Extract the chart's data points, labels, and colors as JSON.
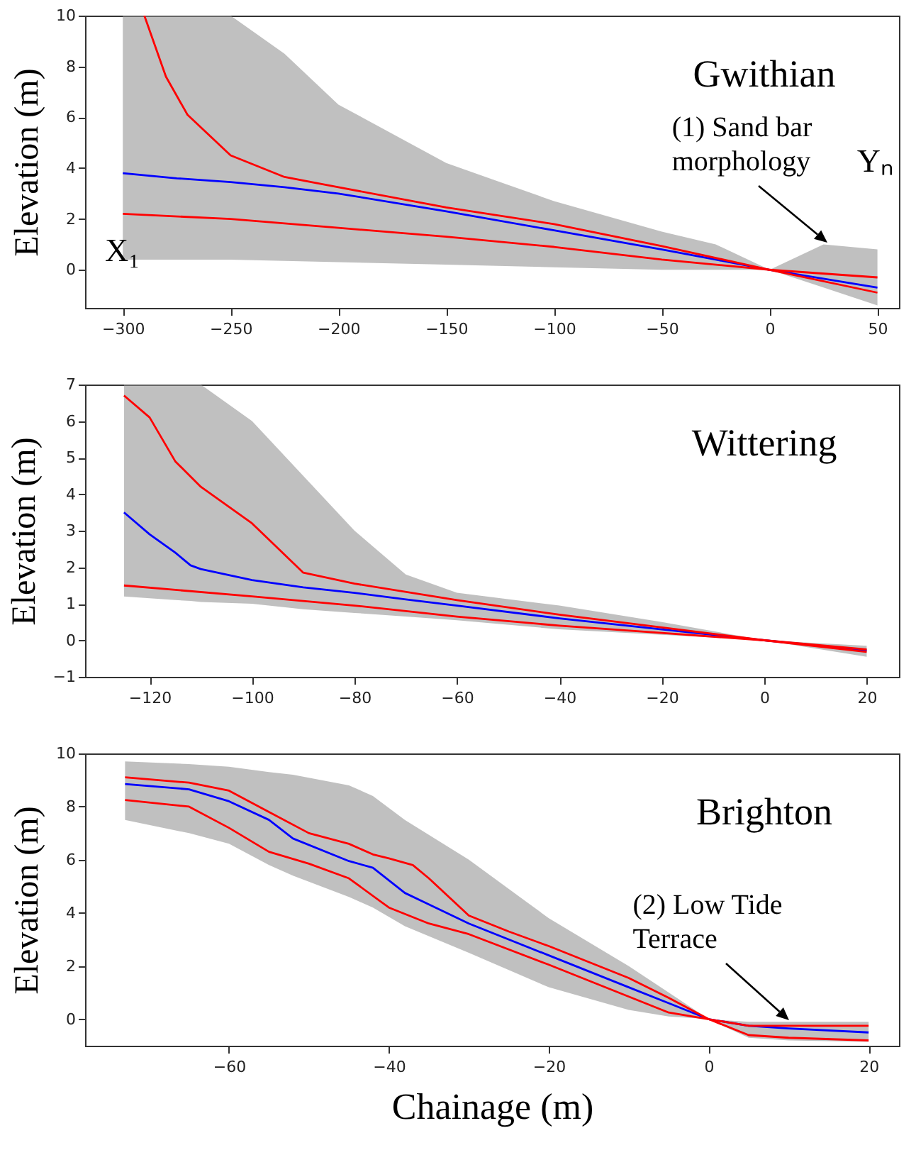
{
  "chart_data": [
    {
      "type": "line",
      "title": "Gwithian",
      "ylabel": "Elevation (m)",
      "xlim": [
        -317.5,
        60
      ],
      "ylim": [
        -1.5,
        10
      ],
      "xticks": [
        -300,
        -250,
        -200,
        -150,
        -100,
        -50,
        0,
        50
      ],
      "yticks": [
        0,
        2,
        4,
        6,
        8,
        10
      ],
      "grid": false,
      "legend": false,
      "marker": "none",
      "line_style": "solid",
      "series": [
        {
          "color": "#0000ff",
          "x": [
            -300,
            -275,
            -250,
            -225,
            -200,
            -150,
            -100,
            -50,
            -25,
            0,
            25,
            50
          ],
          "values": [
            3.8,
            3.6,
            3.45,
            3.25,
            3.0,
            2.3,
            1.55,
            0.8,
            0.4,
            0,
            -0.35,
            -0.7
          ],
          "upper": [
            10,
            10,
            10,
            8.5,
            6.5,
            4.2,
            2.7,
            1.5,
            1.0,
            0,
            1.0,
            0.8
          ],
          "lower": [
            0.4,
            0.4,
            0.4,
            0.35,
            0.3,
            0.2,
            0.1,
            0,
            0,
            0,
            -0.7,
            -1.4
          ]
        },
        {
          "color": "#ff0000",
          "x": [
            -290,
            -280,
            -270,
            -250,
            -225,
            -200,
            -150,
            -100,
            -50,
            0,
            50
          ],
          "values": [
            10,
            7.6,
            6.1,
            4.5,
            3.65,
            3.25,
            2.45,
            1.8,
            0.93,
            0,
            -0.3
          ]
        },
        {
          "color": "#ff0000",
          "x": [
            -300,
            -250,
            -200,
            -150,
            -100,
            -50,
            0,
            50
          ],
          "values": [
            2.2,
            2.0,
            1.65,
            1.3,
            0.9,
            0.4,
            0,
            -0.9
          ]
        }
      ],
      "annotations": [
        {
          "text": "(1) Sand bar\nmorphology",
          "x": 27,
          "y": 1.0
        },
        "X₁",
        "Yₙ"
      ]
    },
    {
      "type": "line",
      "title": "Wittering",
      "ylabel": "Elevation (m)",
      "xlim": [
        -132.6,
        26.3
      ],
      "ylim": [
        -1,
        7
      ],
      "xticks": [
        -120,
        -100,
        -80,
        -60,
        -40,
        -20,
        0,
        20
      ],
      "yticks": [
        -1,
        0,
        1,
        2,
        3,
        4,
        5,
        6,
        7
      ],
      "grid": false,
      "legend": false,
      "marker": "none",
      "line_style": "solid",
      "series": [
        {
          "color": "#0000ff",
          "x": [
            -125,
            -120,
            -115,
            -112,
            -110,
            -100,
            -90,
            -80,
            -70,
            -60,
            -40,
            -20,
            0,
            20
          ],
          "values": [
            3.5,
            2.9,
            2.4,
            2.05,
            1.95,
            1.65,
            1.45,
            1.3,
            1.12,
            0.95,
            0.6,
            0.3,
            0,
            -0.28
          ],
          "upper": [
            7,
            7,
            7,
            7,
            7,
            6,
            4.5,
            3,
            1.8,
            1.3,
            0.95,
            0.5,
            0,
            -0.15
          ],
          "lower": [
            1.2,
            1.15,
            1.1,
            1.08,
            1.05,
            1.0,
            0.85,
            0.75,
            0.65,
            0.55,
            0.3,
            0.15,
            0,
            -0.45
          ]
        },
        {
          "color": "#ff0000",
          "x": [
            -125,
            -120,
            -115,
            -110,
            -100,
            -90,
            -80,
            -60,
            -40,
            -20,
            0,
            20
          ],
          "values": [
            6.7,
            6.1,
            4.9,
            4.2,
            3.2,
            1.85,
            1.55,
            1.1,
            0.7,
            0.35,
            0,
            -0.25
          ]
        },
        {
          "color": "#ff0000",
          "x": [
            -125,
            -100,
            -80,
            -60,
            -40,
            -20,
            0,
            20
          ],
          "values": [
            1.5,
            1.2,
            0.95,
            0.65,
            0.4,
            0.2,
            0,
            -0.32
          ]
        }
      ]
    },
    {
      "type": "line",
      "title": "Brighton",
      "xlabel": "Chainage (m)",
      "ylabel": "Elevation (m)",
      "xlim": [
        -78,
        23.8
      ],
      "ylim": [
        -1,
        10
      ],
      "xticks": [
        -60,
        -40,
        -20,
        0,
        20
      ],
      "yticks": [
        0,
        2,
        4,
        6,
        8,
        10
      ],
      "grid": false,
      "legend": false,
      "marker": "none",
      "line_style": "solid",
      "series": [
        {
          "color": "#0000ff",
          "x": [
            -73,
            -65,
            -60,
            -55,
            -52,
            -45,
            -42,
            -38,
            -30,
            -20,
            -10,
            -5,
            0,
            5,
            10,
            20
          ],
          "values": [
            8.85,
            8.65,
            8.2,
            7.5,
            6.8,
            5.95,
            5.7,
            4.75,
            3.6,
            2.4,
            1.2,
            0.6,
            0,
            -0.25,
            -0.35,
            -0.5
          ],
          "upper": [
            9.7,
            9.6,
            9.5,
            9.3,
            9.2,
            8.8,
            8.4,
            7.5,
            6.0,
            3.8,
            2.0,
            1.0,
            0,
            -0.1,
            -0.1,
            -0.1
          ],
          "lower": [
            7.5,
            7.0,
            6.6,
            5.8,
            5.4,
            4.6,
            4.2,
            3.5,
            2.5,
            1.2,
            0.35,
            0.1,
            0,
            -0.7,
            -0.8,
            -0.85
          ]
        },
        {
          "color": "#ff0000",
          "x": [
            -73,
            -65,
            -60,
            -55,
            -50,
            -45,
            -42,
            -40,
            -37,
            -35,
            -30,
            -25,
            -20,
            -10,
            -5,
            0,
            5,
            20
          ],
          "values": [
            9.1,
            8.9,
            8.6,
            7.8,
            7.0,
            6.6,
            6.2,
            6.05,
            5.8,
            5.3,
            3.9,
            3.3,
            2.75,
            1.55,
            0.8,
            0,
            -0.25,
            -0.25
          ]
        },
        {
          "color": "#ff0000",
          "x": [
            -73,
            -65,
            -60,
            -55,
            -50,
            -45,
            -40,
            -35,
            -30,
            -20,
            -10,
            -5,
            0,
            5,
            10,
            20
          ],
          "values": [
            8.25,
            8.0,
            7.2,
            6.3,
            5.85,
            5.3,
            4.2,
            3.6,
            3.2,
            2.05,
            0.85,
            0.25,
            0,
            -0.6,
            -0.7,
            -0.8
          ]
        }
      ],
      "annotations": [
        {
          "text": "(2) Low Tide\nTerrace",
          "x": 10,
          "y": -0.1
        }
      ]
    }
  ]
}
